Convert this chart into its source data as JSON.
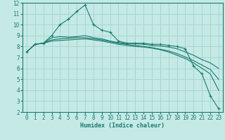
{
  "xlabel": "Humidex (Indice chaleur)",
  "background_color": "#c5eae6",
  "grid_color": "#a8d4d0",
  "line_color": "#1a7a6e",
  "xlim": [
    -0.5,
    23.5
  ],
  "ylim": [
    2,
    12
  ],
  "yticks": [
    2,
    3,
    4,
    5,
    6,
    7,
    8,
    9,
    10,
    11,
    12
  ],
  "xticks": [
    0,
    1,
    2,
    3,
    4,
    5,
    6,
    7,
    8,
    9,
    10,
    11,
    12,
    13,
    14,
    15,
    16,
    17,
    18,
    19,
    20,
    21,
    22,
    23
  ],
  "s0_x": [
    0,
    1,
    2,
    3,
    4,
    5,
    6,
    7,
    8,
    9,
    10,
    11,
    12,
    13,
    14,
    15,
    16,
    17,
    18,
    19,
    20,
    21,
    22,
    23
  ],
  "s0_y": [
    7.5,
    8.2,
    8.3,
    9.0,
    10.0,
    10.5,
    11.2,
    11.8,
    10.0,
    9.5,
    9.3,
    8.5,
    8.3,
    8.3,
    8.3,
    8.2,
    8.2,
    8.1,
    8.0,
    7.8,
    6.2,
    5.5,
    3.5,
    2.3
  ],
  "s1_x": [
    0,
    1,
    2,
    3,
    4,
    5,
    6,
    7,
    8,
    9,
    10,
    11,
    12,
    13,
    14,
    15,
    16,
    17,
    18,
    19,
    20,
    21,
    22,
    23
  ],
  "s1_y": [
    7.5,
    8.2,
    8.3,
    8.8,
    8.9,
    8.85,
    8.9,
    9.0,
    8.8,
    8.7,
    8.5,
    8.35,
    8.3,
    8.25,
    8.2,
    8.1,
    8.05,
    7.95,
    7.8,
    7.5,
    7.2,
    6.8,
    6.5,
    6.0
  ],
  "s2_x": [
    0,
    1,
    2,
    3,
    4,
    5,
    6,
    7,
    8,
    9,
    10,
    11,
    12,
    13,
    14,
    15,
    16,
    17,
    18,
    19,
    20,
    21,
    22,
    23
  ],
  "s2_y": [
    7.5,
    8.2,
    8.3,
    8.6,
    8.7,
    8.75,
    8.8,
    8.8,
    8.7,
    8.6,
    8.45,
    8.3,
    8.2,
    8.1,
    8.0,
    7.9,
    7.75,
    7.6,
    7.35,
    7.05,
    6.7,
    6.3,
    5.9,
    5.0
  ],
  "s3_x": [
    0,
    1,
    2,
    3,
    4,
    5,
    6,
    7,
    8,
    9,
    10,
    11,
    12,
    13,
    14,
    15,
    16,
    17,
    18,
    19,
    20,
    21,
    22,
    23
  ],
  "s3_y": [
    7.5,
    8.2,
    8.3,
    8.5,
    8.55,
    8.6,
    8.65,
    8.7,
    8.6,
    8.5,
    8.35,
    8.2,
    8.1,
    8.0,
    7.95,
    7.85,
    7.7,
    7.5,
    7.2,
    6.9,
    6.5,
    6.0,
    5.5,
    4.0
  ]
}
